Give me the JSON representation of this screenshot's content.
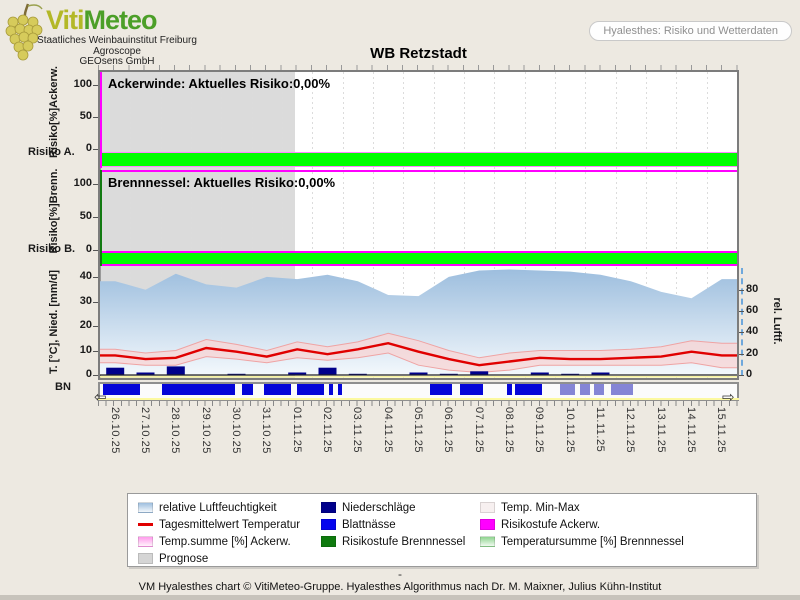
{
  "title": "WB Retzstadt",
  "header": {
    "brand_part1": "Viti",
    "brand_part2": "Meteo",
    "org_lines": [
      "Staatliches Weinbauinstitut Freiburg",
      "Agroscope",
      "GEOsens GmbH"
    ],
    "info_pill": "Hyalesthes: Risiko und Wetterdaten"
  },
  "panels": {
    "ackerwinde": {
      "label": "Ackerwinde: Aktuelles Risiko:0,00%",
      "current_risk": "0,00%",
      "axis_label": "Risiko[%]Ackerw.",
      "side_label": "Risiko A.",
      "yticks": [
        100,
        50,
        0
      ]
    },
    "brennnessel": {
      "label": "Brennnessel: Aktuelles Risiko:0,00%",
      "current_risk": "0,00%",
      "axis_label": "Risiko[%]Brenn.",
      "side_label": "Risiko B.",
      "yticks": [
        100,
        50,
        0
      ]
    },
    "weather": {
      "left_axis_label": "T. [°C], Nied. [mm/d]",
      "right_axis_label": "rel. Luftf.",
      "left_ticks": [
        40,
        30,
        20,
        10,
        0
      ],
      "right_ticks": [
        80,
        60,
        40,
        20,
        0
      ],
      "bn_label": "BN"
    }
  },
  "controls": {
    "scroll_left_glyph": "⇦",
    "scroll_right_glyph": "⇨"
  },
  "legend": {
    "columns": [
      {
        "items": [
          {
            "label": "relative Luftfeuchtigkeit",
            "swatch": {
              "type": "gradient",
              "from": "#9DBEDE",
              "to": "#F3F8FC"
            }
          },
          {
            "label": "Tagesmittelwert Temperatur",
            "swatch": {
              "type": "line",
              "color": "#E00000"
            }
          },
          {
            "label": "Temp.summe [%] Ackerw.",
            "swatch": {
              "type": "gradient",
              "from": "#FF9AEC",
              "to": "#FFF3FB"
            }
          },
          {
            "label": "Prognose",
            "swatch": {
              "type": "solid",
              "color": "#D5D5D5"
            }
          }
        ]
      },
      {
        "items": [
          {
            "label": "Niederschläge",
            "swatch": {
              "type": "solid",
              "color": "#00008B"
            }
          },
          {
            "label": "Blattnässe",
            "swatch": {
              "type": "solid",
              "color": "#0505EE"
            }
          },
          {
            "label": "Risikostufe Brennnessel",
            "swatch": {
              "type": "solid",
              "color": "#0E7A0E"
            }
          }
        ]
      },
      {
        "items": [
          {
            "label": "Temp. Min-Max",
            "swatch": {
              "type": "solid",
              "color": "#F7F0F0"
            }
          },
          {
            "label": "Risikostufe Ackerw.",
            "swatch": {
              "type": "solid",
              "color": "#FF00FF"
            }
          },
          {
            "label": "Temperatursumme [%] Brennnessel",
            "swatch": {
              "type": "gradient",
              "from": "#8FD48F",
              "to": "#F0FAF0"
            }
          }
        ]
      }
    ]
  },
  "footer": {
    "dash": "-",
    "credit": "VM Hyalesthes chart © VitiMeteo-Gruppe. Hyalesthes Algorithmus nach Dr. M. Maixner, Julius Kühn-Institut"
  },
  "chart_data": {
    "type": "mixed",
    "station": "WB Retzstadt",
    "categories": [
      "26.10.25",
      "27.10.25",
      "28.10.25",
      "29.10.25",
      "30.10.25",
      "31.10.25",
      "01.11.25",
      "02.11.25",
      "03.11.25",
      "04.11.25",
      "05.11.25",
      "06.11.25",
      "07.11.25",
      "08.11.25",
      "09.11.25",
      "10.11.25",
      "11.11.25",
      "12.11.25",
      "13.11.25",
      "14.11.25",
      "15.11.25"
    ],
    "forecast_start_date": "09.11.25",
    "forecast_start_frac": 0.695,
    "risk_ackerwinde_pct": 0.0,
    "risk_brennnessel_pct": 0.0,
    "temp_sum_ackerw_pct": 0,
    "temp_sum_brennnessel_pct": 0,
    "left_axis_range": [
      0,
      42
    ],
    "right_axis_range": [
      0,
      100
    ],
    "risk_axis_range": [
      0,
      110
    ],
    "series": [
      {
        "id": "temp_mean",
        "name": "Tagesmittelwert Temperatur",
        "type": "line",
        "axis": "left",
        "unit": "°C",
        "values": [
          8,
          6.5,
          7,
          11,
          9.5,
          7.5,
          10.5,
          8.5,
          10.5,
          13,
          9.5,
          6.5,
          4,
          5.5,
          7,
          6.5,
          6.5,
          7,
          7.5,
          9.5,
          8
        ]
      },
      {
        "id": "temp_min",
        "name": "Temp. Min",
        "type": "band-lower",
        "axis": "left",
        "unit": "°C",
        "values": [
          5,
          4,
          4,
          7.5,
          6.5,
          5,
          7,
          6,
          7,
          9,
          4,
          2,
          1,
          2,
          4,
          4,
          4,
          4,
          4,
          5,
          3
        ]
      },
      {
        "id": "temp_max",
        "name": "Temp. Max",
        "type": "band-upper",
        "axis": "left",
        "unit": "°C",
        "values": [
          10.5,
          9,
          10,
          14.5,
          12.5,
          10,
          13.5,
          11.5,
          13.5,
          17,
          14,
          10,
          7,
          9,
          10,
          10,
          10,
          10.5,
          11.5,
          14,
          13
        ]
      },
      {
        "id": "humidity",
        "name": "relative Luftfeuchtigkeit",
        "type": "area",
        "axis": "right",
        "unit": "%",
        "values": [
          88,
          80,
          95,
          85,
          82,
          92,
          90,
          94,
          88,
          75,
          74,
          92,
          98,
          99,
          98,
          97,
          94,
          88,
          78,
          72,
          90
        ]
      },
      {
        "id": "precip",
        "name": "Niederschläge",
        "type": "bar",
        "axis": "left",
        "unit": "mm",
        "values": [
          3,
          1,
          3.5,
          0,
          0.5,
          0,
          1,
          3,
          0.5,
          0,
          1,
          0.5,
          1.5,
          0,
          1,
          0.5,
          1,
          0,
          0,
          0,
          0
        ]
      },
      {
        "id": "blattnaesse",
        "name": "Blattnässe",
        "type": "segments",
        "segments": [
          [
            0.004,
            0.063,
            false
          ],
          [
            0.098,
            0.212,
            false
          ],
          [
            0.223,
            0.24,
            false
          ],
          [
            0.258,
            0.3,
            false
          ],
          [
            0.309,
            0.352,
            false
          ],
          [
            0.36,
            0.366,
            false
          ],
          [
            0.374,
            0.38,
            false
          ],
          [
            0.518,
            0.553,
            false
          ],
          [
            0.565,
            0.601,
            false
          ],
          [
            0.639,
            0.647,
            false
          ],
          [
            0.651,
            0.694,
            false
          ],
          [
            0.722,
            0.746,
            true
          ],
          [
            0.754,
            0.77,
            true
          ],
          [
            0.776,
            0.791,
            true
          ],
          [
            0.802,
            0.836,
            true
          ]
        ]
      }
    ],
    "colors": {
      "humidity_top": "#9DBEDE",
      "humidity_bottom": "#F3F8FC",
      "temp_line": "#E00000",
      "minmax_band": "#F7D6D6",
      "minmax_edge": "#EFA3A3",
      "precip": "#00008B",
      "blattnaesse": "#0505D8",
      "blattnaesse_forecast": "#8585D5",
      "risk_ok_green": "#00FF00",
      "risikostufe_ackerw": "#FF00FF",
      "risikostufe_brennnessel": "#127A12",
      "prognose_gray": "#DCDCDC"
    }
  }
}
